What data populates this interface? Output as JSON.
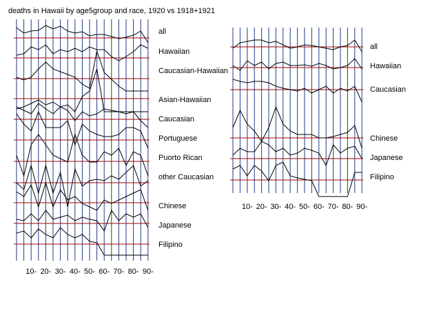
{
  "chart_data": [
    {
      "type": "line",
      "title": "deaths in Hawaii by age5group and race, 1920 vs 1918+1921",
      "categories": [
        null,
        null,
        "10-",
        null,
        "20-",
        null,
        "30-",
        null,
        "40-",
        null,
        "50-",
        null,
        "60-",
        null,
        "70-",
        null,
        "80-",
        null,
        "90-"
      ],
      "reference": 1,
      "reference_color": "#a00000",
      "series": [
        {
          "name": "all",
          "color": "#000000",
          "values": [
            1.75,
            1.35,
            1.5,
            1.55,
            1.9,
            1.65,
            1.85,
            1.5,
            1.35,
            1.45,
            1.15,
            1.25,
            1.25,
            1.1,
            0.95,
            1.05,
            1.2,
            1.5,
            0.65
          ]
        },
        {
          "name": "Hawaiian",
          "color": "#000000",
          "values": [
            1.2,
            1.3,
            1.8,
            1.6,
            1.95,
            1.3,
            1.6,
            1.45,
            1.7,
            1.45,
            1.8,
            1.6,
            1.6,
            1.1,
            0.8,
            1.1,
            1.45,
            1.95,
            1.7
          ]
        },
        {
          "name": "Caucasian-Hawaiian",
          "color": "#000000",
          "values": [
            1.1,
            0.9,
            1.1,
            1.7,
            2.2,
            1.7,
            1.5,
            1.3,
            1.1,
            0.6,
            0.3,
            3.0,
            1.45,
            0.95,
            0.45,
            0.1,
            0.1,
            0.1,
            0.1
          ]
        },
        {
          "name": "Asian-Hawaiian",
          "color": "#000000",
          "values": [
            0.25,
            0.4,
            0.65,
            0.9,
            0.55,
            0.75,
            0.4,
            0.55,
            0.05,
            1.15,
            1.55,
            3.15,
            0.05,
            0.05,
            0.05,
            0.05,
            0.05,
            0.05,
            0.05
          ]
        },
        {
          "name": "Caucasian",
          "color": "#000000",
          "values": [
            1.9,
            1.65,
            1.4,
            2.15,
            1.75,
            1.4,
            1.9,
            1.65,
            0.9,
            1.55,
            1.25,
            1.4,
            1.75,
            1.65,
            1.55,
            1.4,
            1.55,
            0.9,
            0.4
          ]
        },
        {
          "name": "Portuguese",
          "color": "#000000",
          "values": [
            2.9,
            2.15,
            1.65,
            3.05,
            1.9,
            1.9,
            1.9,
            2.4,
            0.65,
            2.15,
            1.65,
            1.4,
            1.25,
            1.25,
            1.4,
            1.9,
            1.9,
            1.65,
            0.4
          ]
        },
        {
          "name": "Puorto Rican",
          "color": "#000000",
          "values": [
            1.45,
            -0.05,
            2.2,
            2.95,
            2.2,
            1.45,
            1.2,
            0.95,
            2.95,
            1.45,
            0.95,
            0.95,
            1.7,
            1.45,
            1.95,
            0.7,
            1.7,
            1.45,
            -0.05
          ]
        },
        {
          "name": "other Caucasian",
          "color": "#000000",
          "values": [
            1,
            0.5,
            2.25,
            0.25,
            2.25,
            0.25,
            1.75,
            -0.75,
            2,
            0.75,
            1.15,
            1.25,
            1.15,
            1.5,
            1.25,
            1.75,
            2.25,
            0.75,
            1.15
          ]
        },
        {
          "name": "Chinese",
          "color": "#000000",
          "values": [
            1.8,
            1.45,
            2.3,
            0.7,
            2.45,
            0.7,
            1.95,
            1.2,
            1.45,
            0.95,
            0.7,
            0.45,
            1.2,
            0.95,
            1.2,
            1.45,
            1.7,
            1.95,
            0.45
          ]
        },
        {
          "name": "Japanese",
          "color": "#000000",
          "values": [
            1.3,
            1.2,
            1.7,
            1.2,
            1.95,
            1.3,
            1.45,
            1.6,
            1.2,
            1.45,
            1.3,
            1.2,
            0.45,
            1.95,
            1.2,
            1.7,
            1.45,
            1.7,
            0.7
          ]
        },
        {
          "name": "Filipino",
          "color": "#000000",
          "values": [
            1.8,
            1.95,
            1.45,
            2.1,
            1.7,
            1.45,
            2.2,
            1.7,
            1.45,
            1.7,
            1.2,
            1.1,
            0.2,
            0.2,
            0.2,
            0.2,
            0.2,
            0.2,
            0.2
          ]
        }
      ]
    },
    {
      "type": "line",
      "categories": [
        null,
        null,
        "10-",
        null,
        "20-",
        null,
        "30-",
        null,
        "40-",
        null,
        "50-",
        null,
        "60-",
        null,
        "70-",
        null,
        "80-",
        null,
        "90-"
      ],
      "reference": 1,
      "reference_color": "#a00000",
      "series": [
        {
          "name": "all",
          "color": "#000000",
          "values": [
            0.9,
            1.3,
            1.4,
            1.5,
            1.5,
            1.3,
            1.4,
            1.15,
            0.9,
            1,
            1.15,
            1.1,
            1,
            0.9,
            0.8,
            1,
            1.1,
            1.5,
            0.65
          ]
        },
        {
          "name": "Hawaiian",
          "color": "#000000",
          "values": [
            1.15,
            0.8,
            1.5,
            1.15,
            1.4,
            0.9,
            1.3,
            1.4,
            1.15,
            1.15,
            1.2,
            1.1,
            1.3,
            1.15,
            0.9,
            1,
            1.15,
            1.65,
            0.9
          ]
        },
        {
          "name": "Caucasian",
          "color": "#000000",
          "values": [
            1.75,
            1.6,
            1.5,
            1.6,
            1.6,
            1.5,
            1.25,
            1.1,
            1,
            0.9,
            1.1,
            0.75,
            1,
            1.25,
            0.75,
            1.1,
            0.9,
            1.25,
            0.1
          ]
        },
        {
          "name": "Chinese",
          "color": "#000000",
          "values": [
            1.75,
            3,
            2,
            1.5,
            0.75,
            1.75,
            3.25,
            2,
            1.5,
            1.25,
            1.25,
            1.25,
            1,
            1,
            1.1,
            1.25,
            1.4,
            1.9,
            0.25
          ]
        },
        {
          "name": "Japanese",
          "color": "#000000",
          "values": [
            1.25,
            1.75,
            1.5,
            1.5,
            2.25,
            2,
            1.5,
            1.75,
            1.25,
            1.4,
            1.75,
            1.6,
            1.4,
            0.5,
            2,
            1.4,
            1.75,
            1.9,
            1
          ]
        },
        {
          "name": "Filipino",
          "color": "#000000",
          "values": [
            1.8,
            2.05,
            1.3,
            2.05,
            1.65,
            0.95,
            2.05,
            2.3,
            1.3,
            1.15,
            1.05,
            0.95,
            -0.2,
            -0.2,
            -0.2,
            -0.2,
            -0.2,
            1.55,
            1.55
          ]
        }
      ]
    }
  ]
}
